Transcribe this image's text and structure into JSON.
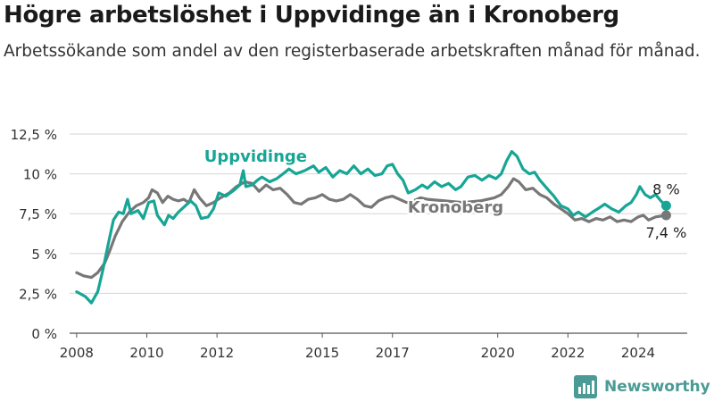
{
  "header": {
    "title": "Högre arbetslöshet i Uppvidinge än i Kronoberg",
    "subtitle": "Arbetssökande som andel av den registerbaserade arbetskraften månad för månad."
  },
  "brand": {
    "name": "Newsworthy",
    "logo_icon": "newsworthy-chart-icon",
    "color": "#4a9b95"
  },
  "chart_data": {
    "type": "line",
    "title": "Högre arbetslöshet i Uppvidinge än i Kronoberg",
    "subtitle": "Arbetssökande som andel av den registerbaserade arbetskraften månad för månad.",
    "xlabel": "",
    "ylabel": "",
    "ylim": [
      0,
      12.5
    ],
    "xlim": [
      2007.8,
      2025.4
    ],
    "yticks": [
      0,
      2.5,
      5,
      7.5,
      10,
      12.5
    ],
    "ytick_labels": [
      "0 %",
      "2,5 %",
      "5 %",
      "7,5 %",
      "10 %",
      "12,5 %"
    ],
    "xticks": [
      2008,
      2010,
      2012,
      2015,
      2017,
      2020,
      2022,
      2024
    ],
    "xtick_labels": [
      "2008",
      "2010",
      "2012",
      "2015",
      "2017",
      "2020",
      "2022",
      "2024"
    ],
    "grid": "horizontal",
    "series": [
      {
        "name": "Uppvidinge",
        "color": "#17a595",
        "end_label": "8 %",
        "points": [
          [
            2008.0,
            2.6
          ],
          [
            2008.25,
            2.3
          ],
          [
            2008.42,
            1.9
          ],
          [
            2008.6,
            2.6
          ],
          [
            2008.75,
            4.0
          ],
          [
            2008.9,
            5.6
          ],
          [
            2009.05,
            7.1
          ],
          [
            2009.2,
            7.6
          ],
          [
            2009.33,
            7.5
          ],
          [
            2009.45,
            8.4
          ],
          [
            2009.55,
            7.5
          ],
          [
            2009.75,
            7.7
          ],
          [
            2009.9,
            7.2
          ],
          [
            2010.05,
            8.2
          ],
          [
            2010.2,
            8.3
          ],
          [
            2010.3,
            7.4
          ],
          [
            2010.5,
            6.8
          ],
          [
            2010.62,
            7.4
          ],
          [
            2010.75,
            7.2
          ],
          [
            2010.9,
            7.6
          ],
          [
            2011.05,
            7.9
          ],
          [
            2011.25,
            8.3
          ],
          [
            2011.4,
            8.0
          ],
          [
            2011.55,
            7.2
          ],
          [
            2011.75,
            7.3
          ],
          [
            2011.9,
            7.8
          ],
          [
            2012.05,
            8.8
          ],
          [
            2012.25,
            8.6
          ],
          [
            2012.5,
            9.0
          ],
          [
            2012.65,
            9.3
          ],
          [
            2012.75,
            10.2
          ],
          [
            2012.82,
            9.2
          ],
          [
            2013.0,
            9.3
          ],
          [
            2013.15,
            9.6
          ],
          [
            2013.28,
            9.8
          ],
          [
            2013.5,
            9.5
          ],
          [
            2013.7,
            9.7
          ],
          [
            2013.88,
            10.0
          ],
          [
            2014.05,
            10.3
          ],
          [
            2014.25,
            10.0
          ],
          [
            2014.5,
            10.2
          ],
          [
            2014.75,
            10.5
          ],
          [
            2014.9,
            10.1
          ],
          [
            2015.1,
            10.4
          ],
          [
            2015.3,
            9.8
          ],
          [
            2015.5,
            10.2
          ],
          [
            2015.7,
            10.0
          ],
          [
            2015.9,
            10.5
          ],
          [
            2016.1,
            10.0
          ],
          [
            2016.3,
            10.3
          ],
          [
            2016.5,
            9.9
          ],
          [
            2016.7,
            10.0
          ],
          [
            2016.85,
            10.5
          ],
          [
            2017.0,
            10.6
          ],
          [
            2017.15,
            10.0
          ],
          [
            2017.3,
            9.6
          ],
          [
            2017.45,
            8.8
          ],
          [
            2017.65,
            9.0
          ],
          [
            2017.85,
            9.3
          ],
          [
            2018.0,
            9.1
          ],
          [
            2018.2,
            9.5
          ],
          [
            2018.4,
            9.2
          ],
          [
            2018.6,
            9.4
          ],
          [
            2018.8,
            9.0
          ],
          [
            2018.95,
            9.2
          ],
          [
            2019.15,
            9.8
          ],
          [
            2019.35,
            9.9
          ],
          [
            2019.55,
            9.6
          ],
          [
            2019.75,
            9.9
          ],
          [
            2019.95,
            9.7
          ],
          [
            2020.1,
            10.0
          ],
          [
            2020.25,
            10.8
          ],
          [
            2020.4,
            11.4
          ],
          [
            2020.55,
            11.1
          ],
          [
            2020.72,
            10.3
          ],
          [
            2020.9,
            10.0
          ],
          [
            2021.05,
            10.1
          ],
          [
            2021.2,
            9.6
          ],
          [
            2021.4,
            9.1
          ],
          [
            2021.6,
            8.6
          ],
          [
            2021.8,
            8.0
          ],
          [
            2022.0,
            7.8
          ],
          [
            2022.15,
            7.4
          ],
          [
            2022.3,
            7.6
          ],
          [
            2022.5,
            7.3
          ],
          [
            2022.7,
            7.6
          ],
          [
            2022.85,
            7.8
          ],
          [
            2023.05,
            8.1
          ],
          [
            2023.25,
            7.8
          ],
          [
            2023.45,
            7.6
          ],
          [
            2023.65,
            8.0
          ],
          [
            2023.8,
            8.2
          ],
          [
            2023.95,
            8.7
          ],
          [
            2024.05,
            9.2
          ],
          [
            2024.2,
            8.7
          ],
          [
            2024.35,
            8.5
          ],
          [
            2024.5,
            8.7
          ],
          [
            2024.65,
            8.3
          ],
          [
            2024.8,
            8.0
          ]
        ]
      },
      {
        "name": "Kronoberg",
        "color": "#777777",
        "end_label": "7,4 %",
        "points": [
          [
            2008.0,
            3.8
          ],
          [
            2008.2,
            3.6
          ],
          [
            2008.42,
            3.5
          ],
          [
            2008.6,
            3.8
          ],
          [
            2008.8,
            4.4
          ],
          [
            2008.95,
            5.2
          ],
          [
            2009.1,
            6.1
          ],
          [
            2009.3,
            7.0
          ],
          [
            2009.5,
            7.6
          ],
          [
            2009.7,
            8.0
          ],
          [
            2009.9,
            8.2
          ],
          [
            2010.05,
            8.5
          ],
          [
            2010.15,
            9.0
          ],
          [
            2010.3,
            8.8
          ],
          [
            2010.45,
            8.2
          ],
          [
            2010.6,
            8.6
          ],
          [
            2010.75,
            8.4
          ],
          [
            2010.9,
            8.3
          ],
          [
            2011.05,
            8.4
          ],
          [
            2011.2,
            8.2
          ],
          [
            2011.35,
            9.0
          ],
          [
            2011.5,
            8.5
          ],
          [
            2011.7,
            8.0
          ],
          [
            2011.9,
            8.2
          ],
          [
            2012.1,
            8.5
          ],
          [
            2012.35,
            8.8
          ],
          [
            2012.55,
            9.2
          ],
          [
            2012.8,
            9.5
          ],
          [
            2013.0,
            9.4
          ],
          [
            2013.2,
            8.9
          ],
          [
            2013.4,
            9.3
          ],
          [
            2013.6,
            9.0
          ],
          [
            2013.8,
            9.1
          ],
          [
            2014.0,
            8.7
          ],
          [
            2014.2,
            8.2
          ],
          [
            2014.4,
            8.1
          ],
          [
            2014.6,
            8.4
          ],
          [
            2014.8,
            8.5
          ],
          [
            2015.0,
            8.7
          ],
          [
            2015.2,
            8.4
          ],
          [
            2015.4,
            8.3
          ],
          [
            2015.6,
            8.4
          ],
          [
            2015.8,
            8.7
          ],
          [
            2016.0,
            8.4
          ],
          [
            2016.2,
            8.0
          ],
          [
            2016.4,
            7.9
          ],
          [
            2016.6,
            8.3
          ],
          [
            2016.8,
            8.5
          ],
          [
            2017.0,
            8.6
          ],
          [
            2017.2,
            8.4
          ],
          [
            2017.4,
            8.2
          ],
          [
            2017.6,
            8.3
          ],
          [
            2017.8,
            8.5
          ],
          [
            2018.0,
            8.4
          ],
          [
            2018.5,
            8.3
          ],
          [
            2019.0,
            8.2
          ],
          [
            2019.5,
            8.3
          ],
          [
            2019.9,
            8.5
          ],
          [
            2020.1,
            8.7
          ],
          [
            2020.3,
            9.2
          ],
          [
            2020.45,
            9.7
          ],
          [
            2020.6,
            9.5
          ],
          [
            2020.8,
            9.0
          ],
          [
            2021.0,
            9.1
          ],
          [
            2021.2,
            8.7
          ],
          [
            2021.4,
            8.5
          ],
          [
            2021.6,
            8.1
          ],
          [
            2021.8,
            7.8
          ],
          [
            2022.0,
            7.5
          ],
          [
            2022.2,
            7.1
          ],
          [
            2022.4,
            7.2
          ],
          [
            2022.6,
            7.0
          ],
          [
            2022.8,
            7.2
          ],
          [
            2023.0,
            7.1
          ],
          [
            2023.2,
            7.3
          ],
          [
            2023.4,
            7.0
          ],
          [
            2023.6,
            7.1
          ],
          [
            2023.8,
            7.0
          ],
          [
            2024.0,
            7.3
          ],
          [
            2024.15,
            7.4
          ],
          [
            2024.3,
            7.1
          ],
          [
            2024.5,
            7.3
          ],
          [
            2024.8,
            7.4
          ]
        ]
      }
    ]
  }
}
